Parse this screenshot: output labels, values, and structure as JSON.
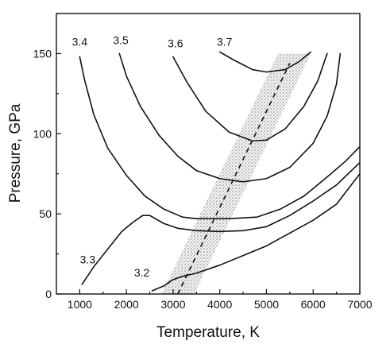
{
  "chart_data": {
    "type": "line",
    "title": "",
    "xlabel": "Temperature, K",
    "ylabel": "Pressure, GPa",
    "xlim": [
      500,
      7000
    ],
    "ylim": [
      0,
      175
    ],
    "xticks": [
      1000,
      2000,
      3000,
      4000,
      5000,
      6000,
      7000
    ],
    "yticks": [
      0,
      50,
      100,
      150
    ],
    "x_tick_labels": [
      "1000",
      "2000",
      "3000",
      "4000",
      "5000",
      "6000",
      "7000"
    ],
    "y_tick_labels": [
      "0",
      "50",
      "100",
      "150"
    ],
    "grid": false,
    "legend": "none",
    "series": [
      {
        "label": "3.2",
        "points": [
          [
            2550,
            2
          ],
          [
            2800,
            5
          ],
          [
            3000,
            9
          ],
          [
            3200,
            11
          ],
          [
            3500,
            13
          ],
          [
            4000,
            18
          ],
          [
            4500,
            24
          ],
          [
            5000,
            30
          ],
          [
            5500,
            38
          ],
          [
            6000,
            46
          ],
          [
            6500,
            56
          ],
          [
            7000,
            75
          ]
        ]
      },
      {
        "label": "3.3",
        "points": [
          [
            1050,
            6
          ],
          [
            1300,
            17
          ],
          [
            1600,
            28
          ],
          [
            1900,
            39
          ],
          [
            2150,
            45
          ],
          [
            2350,
            49
          ],
          [
            2500,
            49
          ],
          [
            2800,
            44
          ],
          [
            3100,
            41
          ],
          [
            3500,
            39.5
          ],
          [
            4000,
            39
          ],
          [
            4500,
            39.5
          ],
          [
            5000,
            42
          ],
          [
            5500,
            49
          ],
          [
            6000,
            58
          ],
          [
            6500,
            68
          ],
          [
            7000,
            82
          ]
        ]
      },
      {
        "label": "3.4",
        "points": [
          [
            1000,
            148
          ],
          [
            1100,
            134
          ],
          [
            1300,
            112
          ],
          [
            1600,
            91
          ],
          [
            2000,
            74
          ],
          [
            2400,
            61
          ],
          [
            2800,
            53
          ],
          [
            3200,
            48
          ],
          [
            3500,
            47
          ],
          [
            4200,
            47
          ],
          [
            4800,
            48
          ],
          [
            5300,
            53
          ],
          [
            5800,
            61
          ],
          [
            6300,
            73
          ],
          [
            6700,
            83
          ],
          [
            7000,
            92
          ]
        ]
      },
      {
        "label": "3.5",
        "points": [
          [
            1850,
            150
          ],
          [
            2000,
            136
          ],
          [
            2300,
            117
          ],
          [
            2700,
            99
          ],
          [
            3100,
            86
          ],
          [
            3500,
            77
          ],
          [
            4000,
            72
          ],
          [
            4500,
            70
          ],
          [
            5000,
            72
          ],
          [
            5500,
            79
          ],
          [
            6000,
            94
          ],
          [
            6300,
            111
          ],
          [
            6500,
            131
          ],
          [
            6580,
            150
          ]
        ]
      },
      {
        "label": "3.6",
        "points": [
          [
            3000,
            148
          ],
          [
            3300,
            132
          ],
          [
            3700,
            114
          ],
          [
            4200,
            101
          ],
          [
            4700,
            95.5
          ],
          [
            5000,
            96
          ],
          [
            5400,
            103
          ],
          [
            5800,
            117
          ],
          [
            6100,
            133
          ],
          [
            6300,
            150
          ]
        ]
      },
      {
        "label": "3.7",
        "points": [
          [
            4000,
            151
          ],
          [
            4300,
            146
          ],
          [
            4700,
            140
          ],
          [
            5000,
            138.5
          ],
          [
            5400,
            140
          ],
          [
            5700,
            145
          ],
          [
            5950,
            151
          ]
        ]
      }
    ],
    "trend_line": [
      [
        3100,
        0
      ],
      [
        5500,
        144
      ]
    ],
    "band_half_width_K": 350
  }
}
